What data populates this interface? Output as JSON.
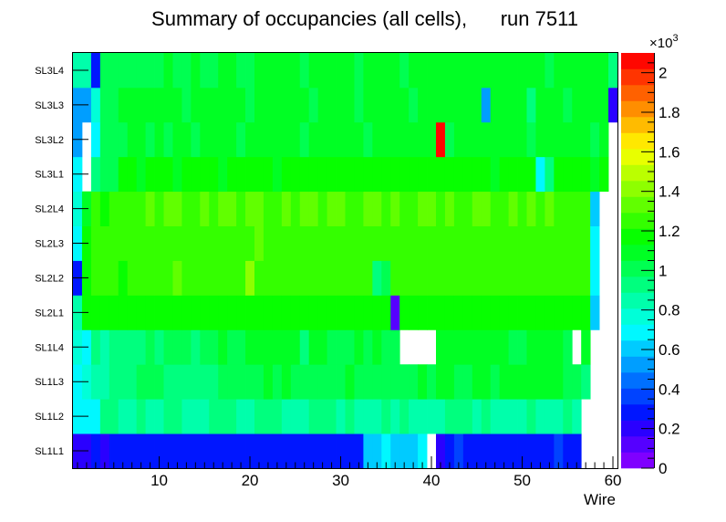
{
  "chart_data": {
    "type": "heatmap",
    "title": "Summary of occupancies (all cells),      run 7511",
    "xlabel": "Wire",
    "ylabel": "",
    "xlim": [
      0.5,
      60.5
    ],
    "x_ticks": [
      "10",
      "20",
      "30",
      "40",
      "50",
      "60"
    ],
    "x_tick_values": [
      10,
      20,
      30,
      40,
      50,
      60
    ],
    "y_labels": [
      "SL1L1",
      "SL1L2",
      "SL1L3",
      "SL1L4",
      "SL2L1",
      "SL2L2",
      "SL2L3",
      "SL2L4",
      "SL3L1",
      "SL3L2",
      "SL3L3",
      "SL3L4"
    ],
    "zlim": [
      0,
      2100
    ],
    "z_exponent_label": "×10",
    "z_exponent_power": "3",
    "z_ticks": [
      "0",
      "0.2",
      "0.4",
      "0.6",
      "0.8",
      "1",
      "1.2",
      "1.4",
      "1.6",
      "1.8",
      "2"
    ],
    "z_tick_values": [
      0,
      200,
      400,
      600,
      800,
      1000,
      1200,
      1400,
      1600,
      1800,
      2000
    ],
    "palette": [
      "#7f00ff",
      "#5500ff",
      "#2a00ff",
      "#0016ff",
      "#0043ff",
      "#0070ff",
      "#009eff",
      "#00cbff",
      "#00f8ff",
      "#00ffd8",
      "#00ffab",
      "#00ff7e",
      "#00ff51",
      "#00ff24",
      "#07ff00",
      "#34ff00",
      "#61ff00",
      "#8eff00",
      "#bbff00",
      "#e8ff00",
      "#ffe800",
      "#ffbb00",
      "#ff8e00",
      "#ff6100",
      "#ff3400",
      "#ff0700"
    ],
    "rows": {
      "SL1L1": [
        210,
        230,
        250,
        220,
        280,
        310,
        320,
        300,
        290,
        310,
        300,
        310,
        300,
        260,
        250,
        310,
        300,
        290,
        300,
        310,
        280,
        290,
        300,
        280,
        310,
        300,
        300,
        250,
        300,
        310,
        310,
        290,
        580,
        600,
        700,
        600,
        640,
        620,
        650,
        0,
        180,
        320,
        400,
        310,
        290,
        320,
        300,
        290,
        310,
        300,
        320,
        290,
        300,
        330,
        310,
        310,
        0,
        0,
        0,
        0
      ],
      "SL1L2": [
        660,
        650,
        700,
        900,
        920,
        860,
        870,
        890,
        880,
        870,
        900,
        890,
        880,
        860,
        870,
        900,
        920,
        900,
        880,
        870,
        900,
        920,
        890,
        880,
        870,
        870,
        900,
        920,
        900,
        880,
        900,
        880,
        870,
        880,
        900,
        880,
        900,
        880,
        870,
        860,
        880,
        900,
        920,
        900,
        880,
        900,
        880,
        860,
        870,
        880,
        900,
        880,
        870,
        880,
        890,
        880,
        0,
        0,
        0,
        0
      ],
      "SL1L3": [
        660,
        750,
        850,
        880,
        920,
        900,
        890,
        1000,
        990,
        980,
        960,
        930,
        920,
        960,
        940,
        950,
        1040,
        1030,
        1000,
        990,
        1030,
        1050,
        1000,
        1050,
        1020,
        1030,
        990,
        1040,
        1030,
        1020,
        1050,
        1030,
        1010,
        1040,
        990,
        1020,
        1030,
        1040,
        1050,
        1030,
        1050,
        1060,
        1030,
        1020,
        1070,
        1060,
        1030,
        1050,
        1080,
        1060,
        1050,
        1080,
        1050,
        1070,
        1030,
        1030,
        950,
        0,
        0,
        0
      ],
      "SL1L4": [
        780,
        700,
        920,
        880,
        940,
        930,
        950,
        960,
        970,
        960,
        1020,
        1000,
        980,
        960,
        1000,
        990,
        1050,
        1030,
        1040,
        1050,
        1080,
        1080,
        1050,
        1080,
        1080,
        960,
        1080,
        1050,
        1040,
        980,
        1040,
        1080,
        1000,
        1050,
        1040,
        1040,
        0,
        0,
        0,
        0,
        1050,
        1070,
        1050,
        1070,
        1060,
        1080,
        1050,
        1100,
        1000,
        970,
        1070,
        1100,
        1050,
        1050,
        1040,
        0,
        1060,
        0,
        0,
        0
      ],
      "SL2L1": [
        860,
        1140,
        1160,
        1180,
        1160,
        1150,
        1160,
        1170,
        1140,
        1150,
        1160,
        1150,
        1180,
        1170,
        1160,
        1150,
        1180,
        1170,
        1160,
        1200,
        1180,
        1160,
        1170,
        1180,
        1160,
        1150,
        1170,
        1180,
        1160,
        1170,
        1180,
        1140,
        1170,
        1160,
        1200,
        150,
        1150,
        1180,
        1170,
        1160,
        1170,
        1180,
        1160,
        1200,
        1170,
        1160,
        1180,
        1170,
        1160,
        1150,
        1140,
        1180,
        1170,
        1160,
        1200,
        1170,
        1140,
        640,
        0,
        0
      ],
      "SL2L2": [
        250,
        1180,
        1260,
        1250,
        1240,
        1200,
        1240,
        1250,
        1230,
        1240,
        1260,
        1370,
        1250,
        1240,
        1260,
        1250,
        1240,
        1240,
        1230,
        1380,
        1260,
        1240,
        1250,
        1230,
        1240,
        1250,
        1230,
        1240,
        1260,
        1250,
        1240,
        1250,
        1230,
        960,
        980,
        1240,
        1260,
        1230,
        1250,
        1240,
        1230,
        1260,
        1240,
        1280,
        1250,
        1240,
        1230,
        1260,
        1250,
        1240,
        1230,
        1250,
        1240,
        1260,
        1250,
        1240,
        1230,
        690,
        0,
        0
      ],
      "SL2L3": [
        660,
        1210,
        1280,
        1260,
        1240,
        1250,
        1260,
        1280,
        1250,
        1260,
        1280,
        1270,
        1260,
        1280,
        1270,
        1260,
        1250,
        1280,
        1260,
        1270,
        1300,
        1260,
        1270,
        1280,
        1250,
        1260,
        1240,
        1280,
        1270,
        1260,
        1250,
        1280,
        1260,
        1240,
        1270,
        1260,
        1280,
        1270,
        1260,
        1280,
        1270,
        1260,
        1250,
        1280,
        1260,
        1240,
        1270,
        1280,
        1260,
        1270,
        1280,
        1260,
        1270,
        1250,
        1280,
        1260,
        1270,
        690,
        0,
        0
      ],
      "SL2L4": [
        770,
        1130,
        1230,
        1200,
        1260,
        1280,
        1270,
        1290,
        1300,
        1280,
        1310,
        1300,
        1290,
        1280,
        1300,
        1290,
        1310,
        1300,
        1290,
        1320,
        1300,
        1290,
        1280,
        1300,
        1290,
        1310,
        1300,
        1290,
        1320,
        1300,
        1290,
        1280,
        1300,
        1310,
        1290,
        1300,
        1290,
        1280,
        1300,
        1310,
        1290,
        1300,
        1280,
        1290,
        1300,
        1310,
        1290,
        1280,
        1300,
        1290,
        1310,
        1290,
        1300,
        1280,
        1290,
        1240,
        1290,
        610,
        0,
        0
      ],
      "SL3L1": [
        700,
        0,
        950,
        1040,
        1030,
        1140,
        1200,
        1130,
        1150,
        1200,
        1150,
        1130,
        1180,
        1200,
        1140,
        1150,
        1130,
        1160,
        1200,
        1180,
        1150,
        1160,
        1130,
        1200,
        1150,
        1140,
        1180,
        1150,
        1200,
        1140,
        1150,
        1160,
        1170,
        1200,
        1150,
        1180,
        1140,
        1160,
        1200,
        1150,
        1200,
        1190,
        1200,
        1150,
        1200,
        1150,
        1130,
        1140,
        1160,
        1200,
        1170,
        700,
        950,
        1150,
        1180,
        1200,
        1150,
        1130,
        1140,
        0
      ],
      "SL3L2": [
        500,
        0,
        700,
        1000,
        1040,
        1040,
        1080,
        1100,
        1020,
        1050,
        1030,
        1080,
        1070,
        1040,
        1060,
        1050,
        1080,
        1070,
        1040,
        1050,
        1060,
        1070,
        1050,
        1080,
        1060,
        1040,
        1070,
        1060,
        1050,
        1080,
        1060,
        1050,
        1040,
        1080,
        1060,
        1070,
        1050,
        1080,
        1060,
        1050,
        2020,
        1040,
        1060,
        1080,
        1050,
        1070,
        1060,
        1080,
        1050,
        1060,
        1040,
        1070,
        1060,
        1080,
        1050,
        1060,
        1070,
        1040,
        1060,
        0
      ],
      "SL3L3": [
        500,
        550,
        750,
        1000,
        1040,
        1080,
        1060,
        1050,
        1080,
        1070,
        1060,
        1050,
        1040,
        1080,
        1070,
        1060,
        1050,
        1080,
        1070,
        1040,
        1060,
        1050,
        1080,
        1070,
        1060,
        1050,
        1040,
        1080,
        1060,
        1070,
        1050,
        1040,
        1060,
        1080,
        1070,
        1050,
        1060,
        1040,
        1080,
        1070,
        1060,
        1050,
        1080,
        1070,
        1060,
        560,
        1080,
        1070,
        1060,
        1050,
        900,
        1080,
        1070,
        1060,
        1040,
        1080,
        1060,
        1050,
        1070,
        230
      ],
      "SL3L4": [
        880,
        850,
        300,
        1020,
        1030,
        1010,
        1000,
        1040,
        1020,
        1030,
        1060,
        1040,
        1020,
        1080,
        1030,
        1040,
        1060,
        1050,
        1030,
        1040,
        1080,
        1070,
        1060,
        1080,
        1050,
        1040,
        1060,
        1080,
        1070,
        1060,
        1050,
        1040,
        1080,
        1070,
        1060,
        1050,
        1040,
        1080,
        1070,
        1060,
        1050,
        1080,
        1070,
        1060,
        1050,
        1080,
        1070,
        1060,
        1050,
        1070,
        1080,
        1060,
        1040,
        1070,
        1060,
        1050,
        1080,
        1070,
        1060,
        900
      ]
    }
  }
}
